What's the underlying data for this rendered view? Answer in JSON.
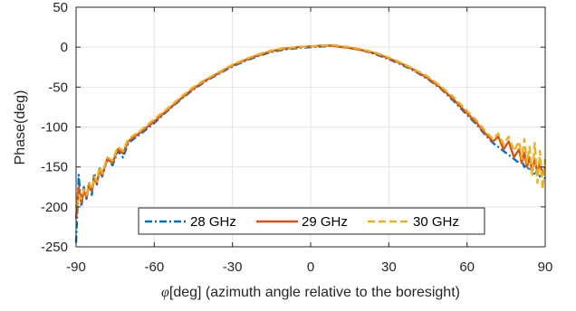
{
  "chart_data": {
    "type": "line",
    "title": "",
    "xlabel": "[deg] (azimuth angle relative to the boresight)",
    "xlabel_symbol": "φ",
    "ylabel": "Phase(deg)",
    "xlim": [
      -90,
      90
    ],
    "ylim": [
      -250,
      50
    ],
    "xticks": [
      -90,
      -60,
      -30,
      0,
      30,
      60,
      90
    ],
    "yticks": [
      50,
      0,
      -50,
      -100,
      -150,
      -200,
      -250
    ],
    "grid": true,
    "legend_position": "bottom-center",
    "series": [
      {
        "name": "28 GHz",
        "color": "#0072bd",
        "style": "dashdot",
        "x": [
          -90,
          -89,
          -88,
          -87,
          -86,
          -85,
          -84,
          -83,
          -82,
          -81,
          -80,
          -78,
          -76,
          -74,
          -72,
          -70,
          -65,
          -60,
          -55,
          -50,
          -45,
          -40,
          -35,
          -30,
          -25,
          -20,
          -15,
          -10,
          -5,
          0,
          5,
          8,
          10,
          15,
          20,
          25,
          30,
          35,
          40,
          45,
          50,
          55,
          58,
          61,
          64,
          67,
          70,
          72,
          74,
          76,
          78,
          80,
          81,
          82,
          83,
          84,
          85,
          86,
          87,
          88,
          89,
          90
        ],
        "y": [
          -245,
          -160,
          -200,
          -175,
          -190,
          -170,
          -185,
          -158,
          -172,
          -150,
          -162,
          -140,
          -148,
          -130,
          -138,
          -120,
          -108,
          -95,
          -80,
          -66,
          -53,
          -42,
          -33,
          -24,
          -17,
          -11,
          -6,
          -3,
          -1,
          0,
          1,
          2,
          1,
          -1,
          -4,
          -9,
          -15,
          -22,
          -30,
          -40,
          -52,
          -68,
          -78,
          -88,
          -98,
          -110,
          -120,
          -125,
          -130,
          -135,
          -140,
          -145,
          -142,
          -150,
          -148,
          -155,
          -150,
          -160,
          -153,
          -162,
          -155,
          -165
        ]
      },
      {
        "name": "29 GHz",
        "color": "#d95319",
        "style": "solid",
        "x": [
          -90,
          -89,
          -88,
          -87,
          -86,
          -85,
          -84,
          -83,
          -82,
          -81,
          -80,
          -78,
          -76,
          -74,
          -72,
          -70,
          -65,
          -60,
          -55,
          -50,
          -45,
          -40,
          -35,
          -30,
          -25,
          -20,
          -15,
          -10,
          -5,
          0,
          5,
          8,
          10,
          15,
          20,
          25,
          30,
          35,
          40,
          45,
          50,
          55,
          58,
          61,
          64,
          67,
          70,
          72,
          74,
          76,
          78,
          80,
          81,
          82,
          83,
          84,
          85,
          86,
          87,
          88,
          89,
          90
        ],
        "y": [
          -215,
          -175,
          -195,
          -180,
          -188,
          -172,
          -180,
          -165,
          -170,
          -155,
          -160,
          -140,
          -145,
          -128,
          -133,
          -118,
          -106,
          -93,
          -79,
          -65,
          -52,
          -41,
          -32,
          -23,
          -16,
          -10,
          -5,
          -2,
          0,
          1,
          2,
          2,
          1,
          -1,
          -4,
          -8,
          -14,
          -21,
          -29,
          -39,
          -51,
          -66,
          -76,
          -86,
          -96,
          -108,
          -118,
          -112,
          -128,
          -118,
          -138,
          -128,
          -145,
          -132,
          -150,
          -138,
          -155,
          -140,
          -158,
          -145,
          -160,
          -150
        ]
      },
      {
        "name": "30 GHz",
        "color": "#edb120",
        "style": "dashed",
        "x": [
          -90,
          -89,
          -88,
          -87,
          -86,
          -85,
          -84,
          -83,
          -82,
          -81,
          -80,
          -78,
          -76,
          -74,
          -72,
          -70,
          -65,
          -60,
          -55,
          -50,
          -45,
          -40,
          -35,
          -30,
          -25,
          -20,
          -15,
          -10,
          -5,
          0,
          5,
          8,
          10,
          15,
          20,
          25,
          30,
          35,
          40,
          45,
          50,
          55,
          58,
          61,
          64,
          67,
          70,
          72,
          74,
          76,
          78,
          80,
          81,
          82,
          83,
          84,
          85,
          86,
          87,
          88,
          89,
          90
        ],
        "y": [
          -200,
          -185,
          -190,
          -178,
          -185,
          -170,
          -178,
          -162,
          -168,
          -150,
          -158,
          -138,
          -142,
          -125,
          -130,
          -115,
          -104,
          -90,
          -77,
          -63,
          -50,
          -40,
          -31,
          -22,
          -15,
          -9,
          -4,
          -1,
          0,
          1,
          2,
          3,
          2,
          0,
          -3,
          -7,
          -13,
          -20,
          -28,
          -37,
          -49,
          -63,
          -73,
          -83,
          -93,
          -105,
          -115,
          -108,
          -122,
          -112,
          -130,
          -118,
          -140,
          -115,
          -145,
          -125,
          -160,
          -120,
          -170,
          -130,
          -178,
          -140
        ]
      }
    ]
  }
}
